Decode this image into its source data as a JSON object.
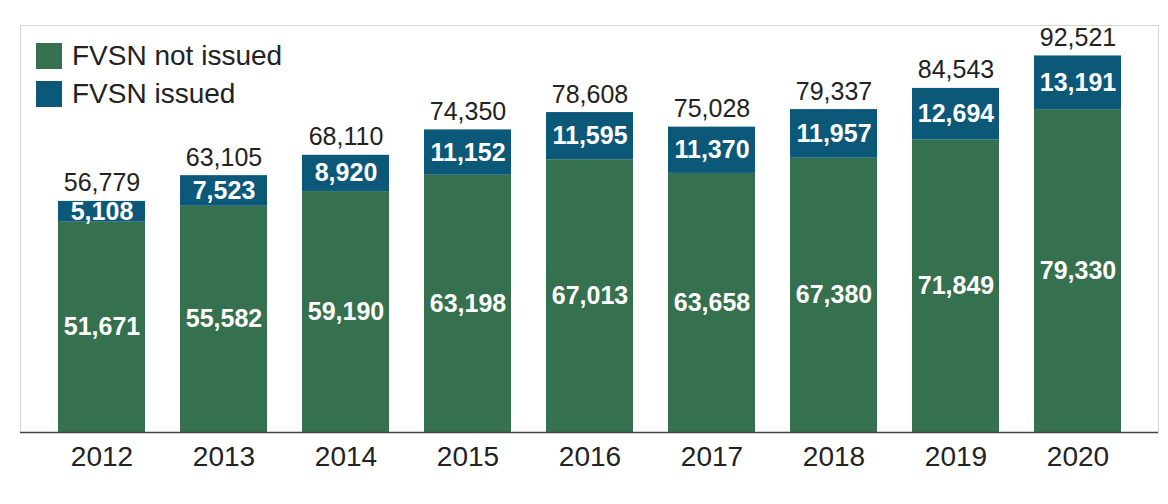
{
  "chart_data": {
    "type": "bar",
    "stacked": true,
    "data_labels": true,
    "tick_labels": "x",
    "legend": "top-left",
    "grid": false,
    "categories": [
      "2012",
      "2013",
      "2014",
      "2015",
      "2016",
      "2017",
      "2018",
      "2019",
      "2020"
    ],
    "series": [
      {
        "name": "FVSN not issued",
        "color": "#35704f",
        "values": [
          51671,
          55582,
          59190,
          63198,
          67013,
          63658,
          67380,
          71849,
          79330
        ],
        "value_labels": [
          "51,671",
          "55,582",
          "59,190",
          "63,198",
          "67,013",
          "63,658",
          "67,380",
          "71,849",
          "79,330"
        ]
      },
      {
        "name": "FVSN issued",
        "color": "#0b5878",
        "values": [
          5108,
          7523,
          8920,
          11152,
          11595,
          11370,
          11957,
          12694,
          13191
        ],
        "value_labels": [
          "5,108",
          "7,523",
          "8,920",
          "11,152",
          "11,595",
          "11,370",
          "11,957",
          "12,694",
          "13,191"
        ]
      }
    ],
    "totals": {
      "values": [
        56779,
        63105,
        68110,
        74350,
        78608,
        75028,
        79337,
        84543,
        92521
      ],
      "value_labels": [
        "56,779",
        "63,105",
        "68,110",
        "74,350",
        "78,608",
        "75,028",
        "79,337",
        "84,543",
        "92,521"
      ]
    },
    "ylim": [
      0,
      100000
    ],
    "yticks": [
      0
    ]
  }
}
